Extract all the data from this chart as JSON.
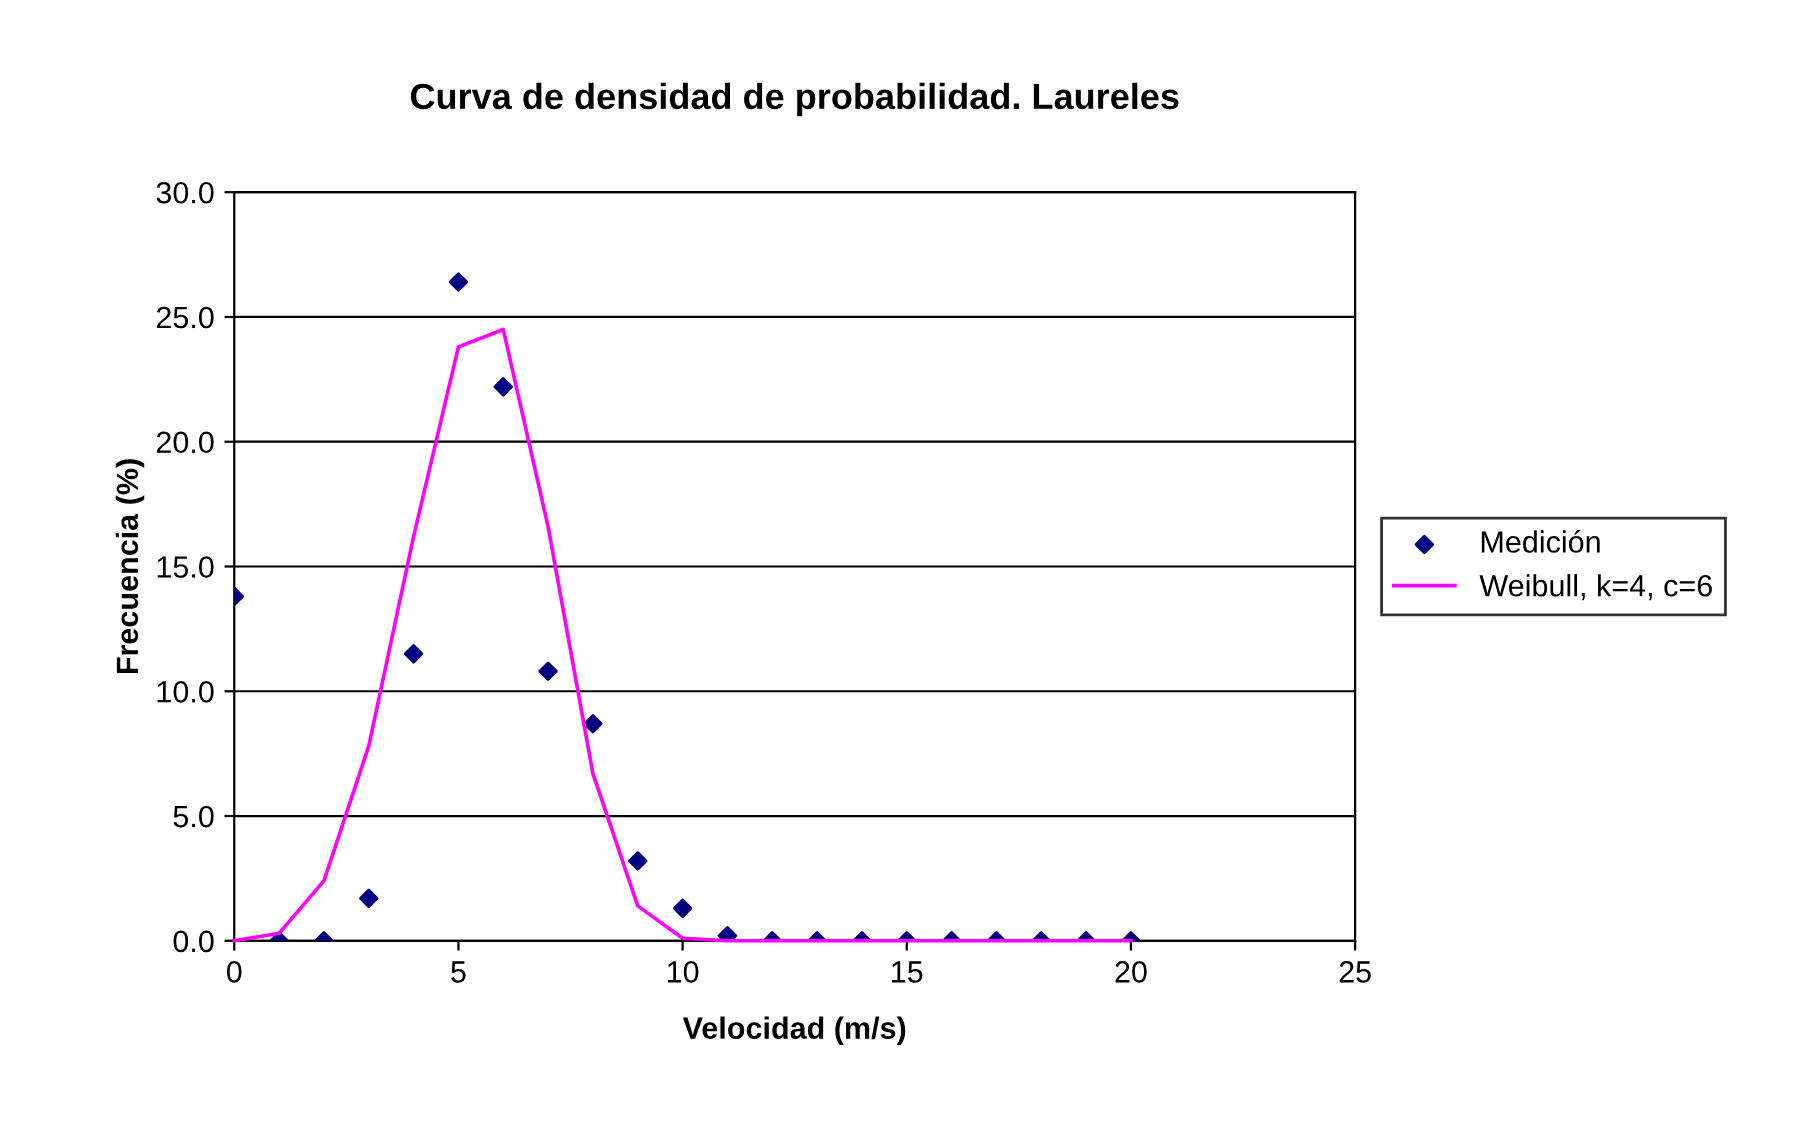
{
  "chart_data": {
    "type": "scatter",
    "title": "Curva de densidad de probabilidad. Laureles",
    "xlabel": "Velocidad (m/s)",
    "ylabel": "Frecuencia (%)",
    "xlim": [
      0,
      25
    ],
    "xticks": [
      0,
      5,
      10,
      15,
      20,
      25
    ],
    "ylim": [
      0,
      30
    ],
    "yticks": [
      {
        "value": 0,
        "label": "0.0"
      },
      {
        "value": 5,
        "label": "5.0"
      },
      {
        "value": 10,
        "label": "10.0"
      },
      {
        "value": 15,
        "label": "15.0"
      },
      {
        "value": 20,
        "label": "20.0"
      },
      {
        "value": 25,
        "label": "25.0"
      },
      {
        "value": 30,
        "label": "30.0"
      }
    ],
    "grid": "y",
    "legend": "right",
    "series": [
      {
        "name": "Medición",
        "marker": "diamond",
        "color": "#000080",
        "x": [
          0,
          1,
          2,
          3,
          4,
          5,
          6,
          7,
          8,
          9,
          10,
          11,
          12,
          13,
          14,
          15,
          16,
          17,
          18,
          19,
          20
        ],
        "values": [
          13.8,
          0,
          0,
          1.7,
          11.5,
          26.4,
          22.2,
          10.8,
          8.7,
          3.2,
          1.3,
          0.2,
          0,
          0,
          0,
          0,
          0,
          0,
          0,
          0,
          0
        ]
      },
      {
        "name": "Weibull, k=4, c=6",
        "type": "line",
        "marker": "none",
        "line_style": "solid",
        "color": "#ff00ff",
        "x": [
          0,
          1,
          2,
          3,
          4,
          5,
          6,
          7,
          8,
          9,
          10,
          11,
          12,
          13,
          14,
          15,
          16,
          17,
          18,
          19,
          20
        ],
        "values": [
          0,
          0.3,
          2.4,
          7.8,
          16.2,
          23.8,
          24.5,
          16.6,
          6.7,
          1.4,
          0.1,
          0,
          0,
          0,
          0,
          0,
          0,
          0,
          0,
          0,
          0
        ]
      }
    ]
  }
}
